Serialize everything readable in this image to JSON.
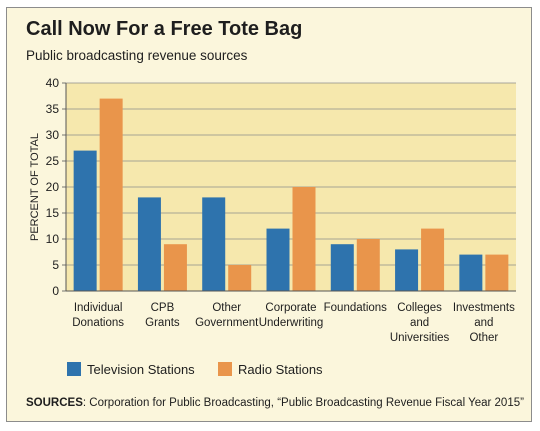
{
  "header": {
    "title": "Call Now For a Free Tote Bag",
    "subtitle": "Public broadcasting revenue sources"
  },
  "footer": {
    "sources_label": "SOURCES",
    "sources_text": ": Corporation for Public Broadcasting, “Public Broadcasting Revenue Fiscal Year 2015”"
  },
  "colors": {
    "television": "#2e73ad",
    "radio": "#e9954b",
    "plot_background": "#f6e8ad",
    "card_background": "#fbf6dc"
  },
  "chart_data": {
    "type": "bar",
    "title": "Call Now For a Free Tote Bag",
    "subtitle": "Public broadcasting revenue sources",
    "xlabel": "",
    "ylabel": "PERCENT OF TOTAL",
    "ylim": [
      0,
      40
    ],
    "yticks": [
      0,
      5,
      10,
      15,
      20,
      25,
      30,
      35,
      40
    ],
    "grid": true,
    "legend_position": "bottom-left",
    "categories": [
      [
        "Individual",
        "Donations"
      ],
      [
        "CPB",
        "Grants"
      ],
      [
        "Other",
        "Government"
      ],
      [
        "Corporate",
        "Underwriting"
      ],
      [
        "Foundations"
      ],
      [
        "Colleges",
        "and",
        "Universities"
      ],
      [
        "Investments",
        "and",
        "Other"
      ]
    ],
    "series": [
      {
        "name": "Television Stations",
        "color": "#2e73ad",
        "values": [
          27,
          18,
          18,
          12,
          9,
          8,
          7
        ]
      },
      {
        "name": "Radio Stations",
        "color": "#e9954b",
        "values": [
          37,
          9,
          5,
          20,
          10,
          12,
          7
        ]
      }
    ]
  }
}
